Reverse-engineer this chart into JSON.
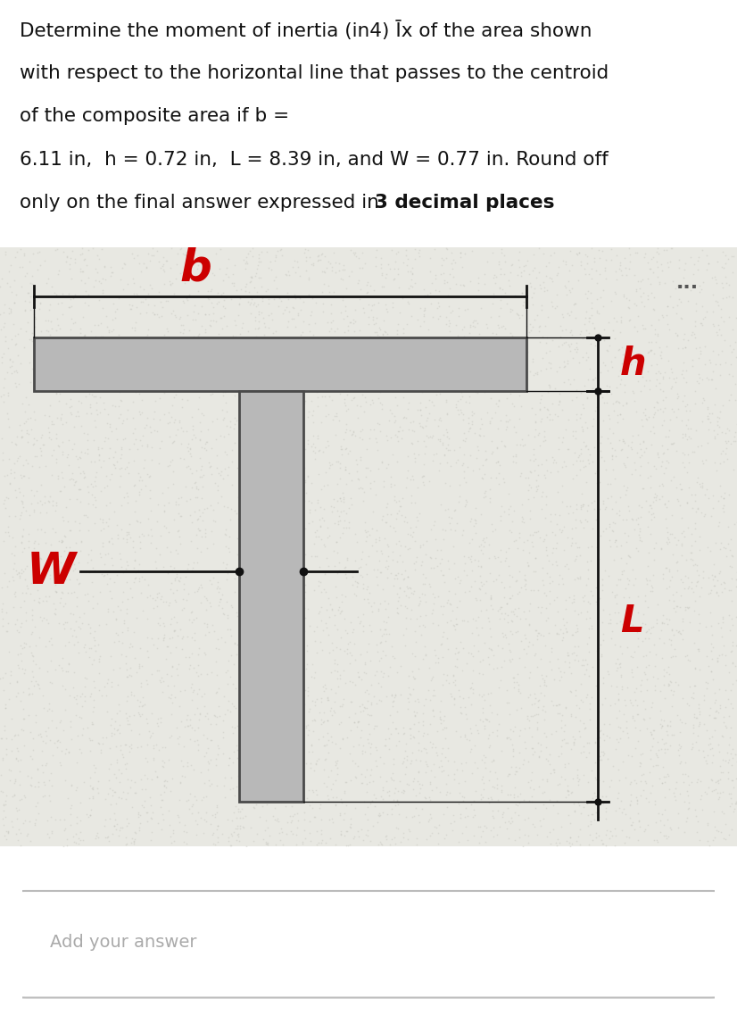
{
  "line1": "Determine the moment of inertia (in4) Īx of the area shown",
  "line2": "with respect to the horizontal line that passes to the centroid",
  "line3": "of the composite area if b =",
  "line4": "6.11 in,  h = 0.72 in,  L = 8.39 in, and W = 0.77 in. Round off",
  "line5a": "only on the final answer expressed in ",
  "line5b": "3 decimal places",
  "line5c": ".",
  "answer_placeholder": "Add your answer",
  "shape_color": "#b8b8b8",
  "shape_edge_color": "#4a4a4a",
  "label_color": "#cc0000",
  "line_color": "#111111",
  "text_color": "#111111",
  "fig_bg": "#ffffff",
  "texture_bg": "#e8e8e2",
  "dots_color": "#555555"
}
